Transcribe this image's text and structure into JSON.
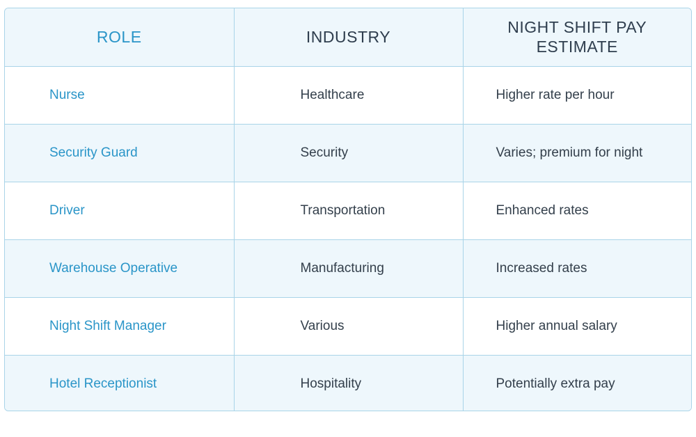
{
  "table": {
    "headers": {
      "role": "ROLE",
      "industry": "INDUSTRY",
      "pay": "NIGHT SHIFT PAY ESTIMATE"
    },
    "rows": [
      {
        "role": "Nurse",
        "industry": "Healthcare",
        "pay": "Higher rate per hour"
      },
      {
        "role": "Security Guard",
        "industry": "Security",
        "pay": "Varies; premium for night"
      },
      {
        "role": "Driver",
        "industry": "Transportation",
        "pay": "Enhanced rates"
      },
      {
        "role": "Warehouse Operative",
        "industry": "Manufacturing",
        "pay": "Increased rates"
      },
      {
        "role": "Night Shift Manager",
        "industry": "Various",
        "pay": "Higher annual salary"
      },
      {
        "role": "Hotel Receptionist",
        "industry": "Hospitality",
        "pay": "Potentially extra pay"
      }
    ]
  },
  "colors": {
    "accent": "#2a95c8",
    "border": "#a9d4e8",
    "stripe": "#eef7fc",
    "text": "#333f4b"
  }
}
